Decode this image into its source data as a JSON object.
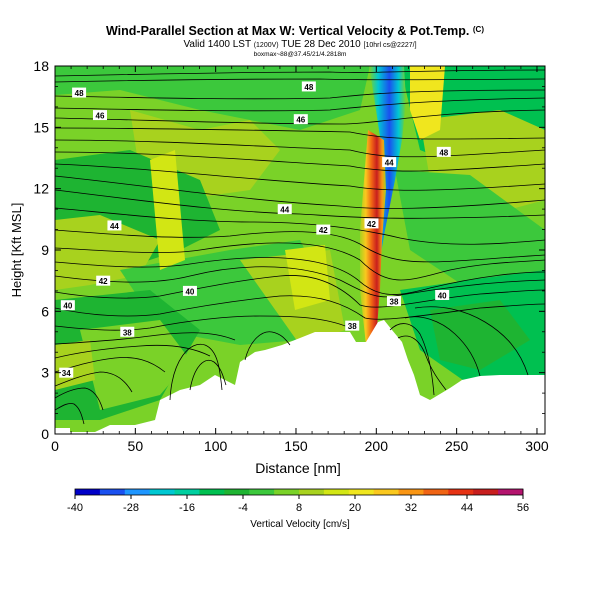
{
  "chart_data": {
    "type": "heatmap",
    "title": "Wind-Parallel Section at Max W: Vertical Velocity & Pot.Temp.",
    "title_mark": "(C)",
    "subtitle": "Valid 1400 LST",
    "subtitle_date_small": "(1200V)",
    "subtitle_day": "TUE 28 Dec 2010",
    "subtitle_grid_small": "[10hrl cs@2227/]",
    "subtitle_line3": "boxmax~88@37.45/21/4.2818m",
    "xlabel": "Distance [nm]",
    "ylabel": "Height [Kft MSL]",
    "xlim": [
      0,
      305
    ],
    "ylim": [
      0,
      18
    ],
    "xticks": [
      "0",
      "50",
      "100",
      "150",
      "200",
      "250",
      "300"
    ],
    "yticks": [
      "0",
      "3",
      "6",
      "9",
      "12",
      "15",
      "18"
    ],
    "xtick_values": [
      0,
      50,
      100,
      150,
      200,
      250,
      300
    ],
    "ytick_values": [
      0,
      3,
      6,
      9,
      12,
      15,
      18
    ],
    "colorbar": {
      "label": "Vertical Velocity [cm/s]",
      "ticks": [
        "-40",
        "-28",
        "-16",
        "-4",
        "8",
        "20",
        "32",
        "44",
        "56"
      ],
      "colors": [
        "#0000c8",
        "#1a50f0",
        "#1e96ff",
        "#00c8d2",
        "#00cfa0",
        "#00c050",
        "#1eb432",
        "#3cc83c",
        "#7ad228",
        "#a8d21e",
        "#d2e614",
        "#f0e61e",
        "#fac81e",
        "#fa9614",
        "#f06414",
        "#e63214",
        "#c81e1e",
        "#b4146e"
      ]
    },
    "contour_labels": [
      {
        "text": "48",
        "x": 15,
        "y": 16.7
      },
      {
        "text": "48",
        "x": 158,
        "y": 17.0
      },
      {
        "text": "46",
        "x": 28,
        "y": 15.6
      },
      {
        "text": "46",
        "x": 153,
        "y": 15.4
      },
      {
        "text": "48",
        "x": 242,
        "y": 13.8
      },
      {
        "text": "44",
        "x": 208,
        "y": 13.3
      },
      {
        "text": "44",
        "x": 143,
        "y": 11.0
      },
      {
        "text": "44",
        "x": 37,
        "y": 10.2
      },
      {
        "text": "42",
        "x": 167,
        "y": 10.0
      },
      {
        "text": "42",
        "x": 197,
        "y": 10.3
      },
      {
        "text": "42",
        "x": 30,
        "y": 7.5
      },
      {
        "text": "40",
        "x": 8,
        "y": 6.3
      },
      {
        "text": "40",
        "x": 84,
        "y": 7.0
      },
      {
        "text": "40",
        "x": 241,
        "y": 6.8
      },
      {
        "text": "38",
        "x": 45,
        "y": 5.0
      },
      {
        "text": "38",
        "x": 185,
        "y": 5.3
      },
      {
        "text": "38",
        "x": 211,
        "y": 6.5
      },
      {
        "text": "34",
        "x": 7,
        "y": 3.0
      }
    ]
  }
}
